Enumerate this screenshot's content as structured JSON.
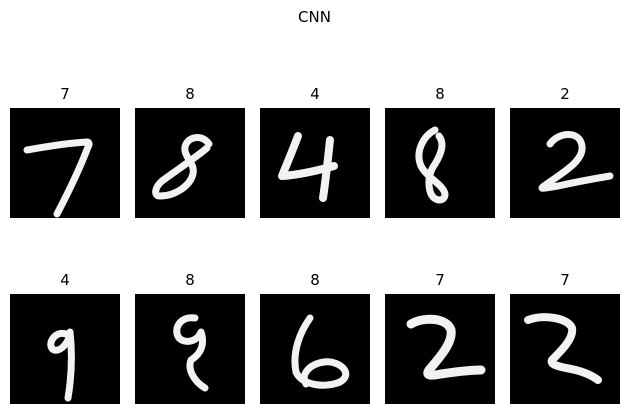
{
  "figure": {
    "title": "CNN"
  },
  "panels": [
    {
      "label": "7"
    },
    {
      "label": "8"
    },
    {
      "label": "4"
    },
    {
      "label": "8"
    },
    {
      "label": "2"
    },
    {
      "label": "4"
    },
    {
      "label": "8"
    },
    {
      "label": "8"
    },
    {
      "label": "7"
    },
    {
      "label": "7"
    }
  ]
}
